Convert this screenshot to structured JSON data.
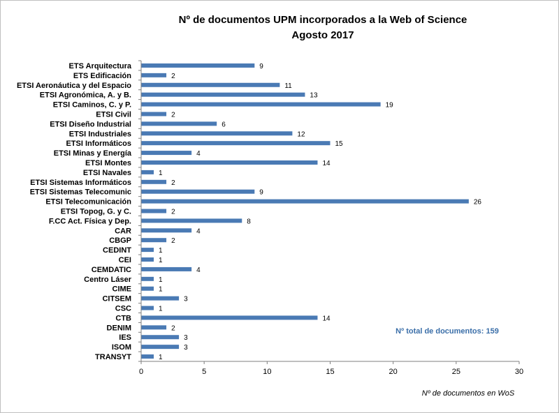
{
  "chart_data": {
    "type": "bar",
    "orientation": "horizontal",
    "title": "Nº de documentos UPM incorporados a la Web of Science",
    "subtitle": "Agosto 2017",
    "xlabel": "Nº de documentos en WoS",
    "ylabel": "",
    "xlim": [
      0,
      30
    ],
    "xticks": [
      "0",
      "5",
      "10",
      "15",
      "20",
      "25",
      "30"
    ],
    "grid": false,
    "bar_color": "#4a7ab4",
    "annotation": "Nº total  de documentos:  159",
    "annotation_color": "#3a6ea8",
    "categories": [
      "ETS Arquitectura",
      "ETS Edificación",
      "ETSI Aeronáutica y del Espacio",
      "ETSI Agronómica, A. y B.",
      "ETSI Caminos, C. y P.",
      "ETSI Civil",
      "ETSI Diseño Industrial",
      "ETSI Industriales",
      "ETSI Informáticos",
      "ETSI Minas y Energía",
      "ETSI Montes",
      "ETSI Navales",
      "ETSI Sistemas Informáticos",
      "ETSI Sistemas Telecomunic",
      "ETSI Telecomunicación",
      "ETSI Topog, G. y C.",
      "F.CC Act. Física y Dep.",
      "CAR",
      "CBGP",
      "CEDINT",
      "CEI",
      "CEMDATIC",
      "Centro Láser",
      "CIME",
      "CITSEM",
      "CSC",
      "CTB",
      "DENIM",
      "IES",
      "ISOM",
      "TRANSYT"
    ],
    "values": [
      9,
      2,
      11,
      13,
      19,
      2,
      6,
      12,
      15,
      4,
      14,
      1,
      2,
      9,
      26,
      2,
      8,
      4,
      2,
      1,
      1,
      4,
      1,
      1,
      3,
      1,
      14,
      2,
      3,
      3,
      1
    ]
  }
}
